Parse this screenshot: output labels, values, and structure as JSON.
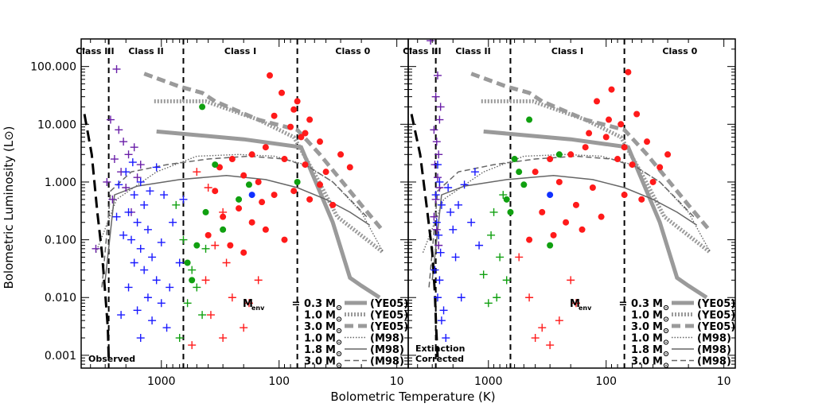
{
  "chart_data": {
    "type": "scatter",
    "xlabel": "Bolometric Temperature (K)",
    "ylabel": "Bolometric Luminosity (L⊙)",
    "x_scale": "log",
    "x_reversed": true,
    "xlim": [
      4800,
      8
    ],
    "y_scale": "log",
    "ylim": [
      0.0006,
      300
    ],
    "x_ticks": [
      1000,
      100,
      10
    ],
    "x_tick_labels": [
      "1000",
      "100",
      "10"
    ],
    "y_ticks": [
      100,
      10,
      1,
      0.1,
      0.01,
      0.001
    ],
    "y_tick_labels": [
      "100.000",
      "10.000",
      "1.000",
      "0.100",
      "0.010",
      "0.001"
    ],
    "class_boundaries_K": [
      2800,
      650,
      70
    ],
    "class_labels": [
      "Class III",
      "Class II",
      "Class I",
      "Class 0"
    ],
    "colors": {
      "class3": "#6a1fa8",
      "class2": "#1a1aff",
      "class1": "#ff1a1a",
      "class0": "#ff1a1a",
      "green": "#10a010",
      "blue_dot": "#1030ff",
      "model": "#9a9a9a",
      "model_dark": "#666666"
    },
    "legend_title": "M",
    "legend_title_sub": "env",
    "legend_entries": [
      {
        "value": "=  0.3",
        "unit": "M",
        "model": "(YE05)",
        "style": "thick-solid"
      },
      {
        "value": "1.0",
        "unit": "M",
        "model": "(YE05)",
        "style": "thick-dotted"
      },
      {
        "value": "3.0",
        "unit": "M",
        "model": "(YE05)",
        "style": "thick-dashed"
      },
      {
        "value": "1.0",
        "unit": "M",
        "model": "(M98)",
        "style": "thin-dotted"
      },
      {
        "value": "1.8",
        "unit": "M",
        "model": "(M98)",
        "style": "thin-solid"
      },
      {
        "value": "3.0",
        "unit": "M",
        "model": "(M98)",
        "style": "thin-dashed"
      }
    ],
    "panels": [
      {
        "name": "observed",
        "corner_label": [
          "Observed"
        ]
      },
      {
        "name": "extinction_corrected",
        "corner_label": [
          "Extinction",
          "Corrected"
        ]
      }
    ],
    "model_tracks": [
      {
        "name": "YE05 0.3",
        "x": [
          1100,
          200,
          65,
          35,
          25,
          20,
          14
        ],
        "y": [
          7.5,
          5.5,
          4,
          0.2,
          0.022,
          0.016,
          0.01
        ]
      },
      {
        "name": "YE05 1.0",
        "x": [
          1150,
          420,
          150,
          75,
          48,
          32,
          13
        ],
        "y": [
          25,
          25,
          12,
          6,
          1.2,
          0.25,
          0.06
        ]
      },
      {
        "name": "YE05 3.0",
        "x": [
          1400,
          700,
          450,
          350,
          150,
          70,
          45,
          20,
          13
        ],
        "y": [
          75,
          45,
          35,
          25,
          12,
          8,
          3,
          0.4,
          0.14
        ]
      },
      {
        "name": "M98 1.0",
        "x": [
          3600,
          2400,
          1100,
          500,
          220,
          110,
          60,
          35,
          20,
          13
        ],
        "y": [
          0.06,
          0.5,
          1.5,
          2.8,
          3.0,
          2.8,
          2.0,
          1.0,
          0.3,
          0.06
        ]
      },
      {
        "name": "M98 1.8",
        "x": [
          3000,
          2500,
          1600,
          700,
          280,
          130,
          70,
          40,
          25,
          17
        ],
        "y": [
          0.02,
          0.6,
          0.85,
          1.1,
          1.3,
          1.1,
          0.8,
          0.5,
          0.3,
          0.18
        ]
      },
      {
        "name": "M98 3.0",
        "x": [
          3200,
          2700,
          1800,
          900,
          400,
          180,
          90,
          55,
          35,
          25,
          18
        ],
        "y": [
          0.015,
          0.7,
          1.5,
          2.0,
          2.5,
          2.8,
          2.5,
          1.8,
          1.0,
          0.5,
          0.25
        ]
      }
    ],
    "observed_curves": {
      "observed": {
        "x": [
          4500,
          3900,
          3500,
          3200,
          3000,
          2850,
          2800
        ],
        "y": [
          15,
          3,
          0.3,
          0.06,
          0.012,
          0.003,
          0.0009
        ]
      },
      "extinction_corrected": {
        "x": [
          4500,
          3800,
          3300,
          3000,
          2850,
          2780,
          2700
        ],
        "y": [
          15,
          3,
          0.3,
          0.06,
          0.012,
          0.003,
          0.0009
        ]
      }
    },
    "left_panel_points": [
      {
        "c": "p",
        "x": 2400,
        "y": 90
      },
      {
        "c": "p",
        "x": 2700,
        "y": 12
      },
      {
        "c": "p",
        "x": 2300,
        "y": 8
      },
      {
        "c": "p",
        "x": 2100,
        "y": 5
      },
      {
        "c": "p",
        "x": 1900,
        "y": 3
      },
      {
        "c": "p",
        "x": 2500,
        "y": 2.5
      },
      {
        "c": "p",
        "x": 1700,
        "y": 4
      },
      {
        "c": "p",
        "x": 2200,
        "y": 1.5
      },
      {
        "c": "p",
        "x": 2000,
        "y": 0.8
      },
      {
        "c": "p",
        "x": 1600,
        "y": 1.2
      },
      {
        "c": "p",
        "x": 2600,
        "y": 0.5
      },
      {
        "c": "p",
        "x": 1800,
        "y": 0.3
      },
      {
        "c": "p",
        "x": 3600,
        "y": 0.07
      },
      {
        "c": "p",
        "x": 1500,
        "y": 2
      },
      {
        "c": "p",
        "x": 2900,
        "y": 1
      },
      {
        "c": "b",
        "x": 2000,
        "y": 1.5
      },
      {
        "c": "b",
        "x": 1500,
        "y": 1
      },
      {
        "c": "b",
        "x": 1700,
        "y": 0.6
      },
      {
        "c": "b",
        "x": 1400,
        "y": 0.4
      },
      {
        "c": "b",
        "x": 1900,
        "y": 0.3
      },
      {
        "c": "b",
        "x": 1600,
        "y": 0.2
      },
      {
        "c": "b",
        "x": 1300,
        "y": 0.15
      },
      {
        "c": "b",
        "x": 1800,
        "y": 0.1
      },
      {
        "c": "b",
        "x": 1500,
        "y": 0.07
      },
      {
        "c": "b",
        "x": 1200,
        "y": 0.05
      },
      {
        "c": "b",
        "x": 1700,
        "y": 0.04
      },
      {
        "c": "b",
        "x": 1400,
        "y": 0.03
      },
      {
        "c": "b",
        "x": 1100,
        "y": 0.02
      },
      {
        "c": "b",
        "x": 1900,
        "y": 0.015
      },
      {
        "c": "b",
        "x": 1300,
        "y": 0.01
      },
      {
        "c": "b",
        "x": 1000,
        "y": 0.008
      },
      {
        "c": "b",
        "x": 1600,
        "y": 0.006
      },
      {
        "c": "b",
        "x": 1200,
        "y": 0.004
      },
      {
        "c": "b",
        "x": 900,
        "y": 0.003
      },
      {
        "c": "b",
        "x": 1500,
        "y": 0.002
      },
      {
        "c": "b",
        "x": 2200,
        "y": 0.005
      },
      {
        "c": "b",
        "x": 800,
        "y": 0.2
      },
      {
        "c": "b",
        "x": 950,
        "y": 0.6
      },
      {
        "c": "b",
        "x": 1100,
        "y": 1.8
      },
      {
        "c": "b",
        "x": 700,
        "y": 0.04
      },
      {
        "c": "b",
        "x": 2400,
        "y": 0.25
      },
      {
        "c": "b",
        "x": 2100,
        "y": 0.12
      },
      {
        "c": "b",
        "x": 1000,
        "y": 0.09
      },
      {
        "c": "b",
        "x": 850,
        "y": 0.015
      },
      {
        "c": "b",
        "x": 1250,
        "y": 0.7
      },
      {
        "c": "b",
        "x": 1750,
        "y": 2.2
      },
      {
        "c": "b",
        "x": 2300,
        "y": 0.9
      },
      {
        "c": "b",
        "x": 650,
        "y": 0.5
      },
      {
        "c": "g",
        "x": 750,
        "y": 0.4
      },
      {
        "c": "g",
        "x": 650,
        "y": 0.1
      },
      {
        "c": "g",
        "x": 550,
        "y": 0.03
      },
      {
        "c": "g",
        "x": 600,
        "y": 0.008
      },
      {
        "c": "g",
        "x": 450,
        "y": 0.005
      },
      {
        "c": "g",
        "x": 700,
        "y": 0.002
      },
      {
        "c": "g",
        "x": 500,
        "y": 0.015
      },
      {
        "c": "g",
        "x": 420,
        "y": 0.07
      },
      {
        "c": "r",
        "x": 500,
        "y": 1.5
      },
      {
        "c": "r",
        "x": 400,
        "y": 0.8
      },
      {
        "c": "r",
        "x": 300,
        "y": 0.3
      },
      {
        "c": "r",
        "x": 350,
        "y": 0.08
      },
      {
        "c": "r",
        "x": 280,
        "y": 0.04
      },
      {
        "c": "r",
        "x": 420,
        "y": 0.02
      },
      {
        "c": "r",
        "x": 250,
        "y": 0.01
      },
      {
        "c": "r",
        "x": 380,
        "y": 0.005
      },
      {
        "c": "r",
        "x": 300,
        "y": 0.002
      },
      {
        "c": "r",
        "x": 200,
        "y": 0.003
      },
      {
        "c": "r",
        "x": 180,
        "y": 0.008
      },
      {
        "c": "r",
        "x": 150,
        "y": 0.02
      },
      {
        "c": "r",
        "x": 550,
        "y": 0.0015
      }
    ],
    "left_panel_circles": [
      {
        "c": "r",
        "x": 120,
        "y": 70
      },
      {
        "c": "r",
        "x": 95,
        "y": 35
      },
      {
        "c": "r",
        "x": 70,
        "y": 25
      },
      {
        "c": "r",
        "x": 55,
        "y": 12
      },
      {
        "c": "r",
        "x": 110,
        "y": 14
      },
      {
        "c": "r",
        "x": 80,
        "y": 9
      },
      {
        "c": "r",
        "x": 65,
        "y": 6
      },
      {
        "c": "r",
        "x": 45,
        "y": 5
      },
      {
        "c": "r",
        "x": 130,
        "y": 4
      },
      {
        "c": "r",
        "x": 170,
        "y": 3
      },
      {
        "c": "r",
        "x": 90,
        "y": 2.5
      },
      {
        "c": "r",
        "x": 60,
        "y": 2
      },
      {
        "c": "r",
        "x": 40,
        "y": 1.5
      },
      {
        "c": "r",
        "x": 30,
        "y": 3
      },
      {
        "c": "r",
        "x": 250,
        "y": 2.5
      },
      {
        "c": "r",
        "x": 320,
        "y": 1.8
      },
      {
        "c": "r",
        "x": 200,
        "y": 1.3
      },
      {
        "c": "r",
        "x": 150,
        "y": 1
      },
      {
        "c": "r",
        "x": 75,
        "y": 0.7
      },
      {
        "c": "r",
        "x": 55,
        "y": 0.5
      },
      {
        "c": "r",
        "x": 35,
        "y": 0.4
      },
      {
        "c": "r",
        "x": 110,
        "y": 0.6
      },
      {
        "c": "r",
        "x": 220,
        "y": 0.35
      },
      {
        "c": "r",
        "x": 300,
        "y": 0.25
      },
      {
        "c": "r",
        "x": 170,
        "y": 0.2
      },
      {
        "c": "r",
        "x": 130,
        "y": 0.15
      },
      {
        "c": "r",
        "x": 400,
        "y": 0.12
      },
      {
        "c": "r",
        "x": 260,
        "y": 0.08
      },
      {
        "c": "r",
        "x": 90,
        "y": 0.1
      },
      {
        "c": "r",
        "x": 200,
        "y": 0.06
      },
      {
        "c": "r",
        "x": 140,
        "y": 0.45
      },
      {
        "c": "r",
        "x": 350,
        "y": 0.7
      },
      {
        "c": "r",
        "x": 45,
        "y": 0.9
      },
      {
        "c": "r",
        "x": 60,
        "y": 7
      },
      {
        "c": "r",
        "x": 75,
        "y": 18
      },
      {
        "c": "r",
        "x": 25,
        "y": 1.8
      },
      {
        "c": "g",
        "x": 220,
        "y": 0.5
      },
      {
        "c": "g",
        "x": 420,
        "y": 0.3
      },
      {
        "c": "g",
        "x": 300,
        "y": 0.15
      },
      {
        "c": "g",
        "x": 500,
        "y": 0.08
      },
      {
        "c": "g",
        "x": 600,
        "y": 0.04
      },
      {
        "c": "g",
        "x": 550,
        "y": 0.02
      },
      {
        "c": "g",
        "x": 350,
        "y": 2
      },
      {
        "c": "g",
        "x": 70,
        "y": 1
      },
      {
        "c": "g",
        "x": 450,
        "y": 20
      },
      {
        "c": "g",
        "x": 180,
        "y": 0.9
      },
      {
        "c": "k",
        "x": 170,
        "y": 0.6
      }
    ],
    "right_panel_points": [
      {
        "c": "p",
        "x": 3100,
        "y": 280
      },
      {
        "c": "p",
        "x": 2700,
        "y": 70
      },
      {
        "c": "p",
        "x": 2800,
        "y": 30
      },
      {
        "c": "p",
        "x": 2600,
        "y": 12
      },
      {
        "c": "p",
        "x": 2900,
        "y": 8
      },
      {
        "c": "p",
        "x": 2750,
        "y": 5
      },
      {
        "c": "p",
        "x": 2650,
        "y": 3
      },
      {
        "c": "p",
        "x": 2850,
        "y": 2
      },
      {
        "c": "p",
        "x": 2700,
        "y": 1.2
      },
      {
        "c": "p",
        "x": 2600,
        "y": 0.8
      },
      {
        "c": "p",
        "x": 2800,
        "y": 0.5
      },
      {
        "c": "p",
        "x": 2900,
        "y": 0.25
      },
      {
        "c": "p",
        "x": 2750,
        "y": 0.15
      },
      {
        "c": "p",
        "x": 2650,
        "y": 0.08
      },
      {
        "c": "p",
        "x": 2550,
        "y": 20
      },
      {
        "c": "b",
        "x": 2700,
        "y": 2
      },
      {
        "c": "b",
        "x": 2600,
        "y": 1
      },
      {
        "c": "b",
        "x": 2800,
        "y": 0.6
      },
      {
        "c": "b",
        "x": 2500,
        "y": 0.4
      },
      {
        "c": "b",
        "x": 2750,
        "y": 0.2
      },
      {
        "c": "b",
        "x": 2650,
        "y": 0.12
      },
      {
        "c": "b",
        "x": 2550,
        "y": 0.06
      },
      {
        "c": "b",
        "x": 2850,
        "y": 0.03
      },
      {
        "c": "b",
        "x": 2600,
        "y": 0.02
      },
      {
        "c": "b",
        "x": 2700,
        "y": 0.01
      },
      {
        "c": "b",
        "x": 2400,
        "y": 0.006
      },
      {
        "c": "b",
        "x": 2500,
        "y": 0.004
      },
      {
        "c": "b",
        "x": 2300,
        "y": 0.002
      },
      {
        "c": "b",
        "x": 2000,
        "y": 0.15
      },
      {
        "c": "b",
        "x": 1800,
        "y": 0.4
      },
      {
        "c": "b",
        "x": 1600,
        "y": 0.9
      },
      {
        "c": "b",
        "x": 1400,
        "y": 0.2
      },
      {
        "c": "b",
        "x": 1900,
        "y": 0.05
      },
      {
        "c": "b",
        "x": 2200,
        "y": 0.8
      },
      {
        "c": "b",
        "x": 2100,
        "y": 0.3
      },
      {
        "c": "b",
        "x": 1300,
        "y": 1.5
      },
      {
        "c": "b",
        "x": 1700,
        "y": 0.01
      },
      {
        "c": "b",
        "x": 1200,
        "y": 0.08
      },
      {
        "c": "g",
        "x": 900,
        "y": 0.3
      },
      {
        "c": "g",
        "x": 800,
        "y": 0.05
      },
      {
        "c": "g",
        "x": 700,
        "y": 0.02
      },
      {
        "c": "g",
        "x": 1000,
        "y": 0.008
      },
      {
        "c": "g",
        "x": 750,
        "y": 0.6
      },
      {
        "c": "g",
        "x": 950,
        "y": 0.12
      },
      {
        "c": "g",
        "x": 850,
        "y": 0.01
      },
      {
        "c": "g",
        "x": 1100,
        "y": 0.025
      },
      {
        "c": "r",
        "x": 450,
        "y": 0.01
      },
      {
        "c": "r",
        "x": 350,
        "y": 0.003
      },
      {
        "c": "r",
        "x": 300,
        "y": 0.0015
      },
      {
        "c": "r",
        "x": 250,
        "y": 0.004
      },
      {
        "c": "r",
        "x": 200,
        "y": 0.02
      },
      {
        "c": "r",
        "x": 550,
        "y": 0.05
      },
      {
        "c": "r",
        "x": 400,
        "y": 0.002
      },
      {
        "c": "r",
        "x": 180,
        "y": 0.008
      }
    ],
    "right_panel_circles": [
      {
        "c": "r",
        "x": 65,
        "y": 80
      },
      {
        "c": "r",
        "x": 90,
        "y": 40
      },
      {
        "c": "r",
        "x": 120,
        "y": 25
      },
      {
        "c": "r",
        "x": 55,
        "y": 15
      },
      {
        "c": "r",
        "x": 75,
        "y": 10
      },
      {
        "c": "r",
        "x": 100,
        "y": 6
      },
      {
        "c": "r",
        "x": 45,
        "y": 5
      },
      {
        "c": "r",
        "x": 150,
        "y": 4
      },
      {
        "c": "r",
        "x": 200,
        "y": 3
      },
      {
        "c": "r",
        "x": 80,
        "y": 2.5
      },
      {
        "c": "r",
        "x": 60,
        "y": 2
      },
      {
        "c": "r",
        "x": 35,
        "y": 1.8
      },
      {
        "c": "r",
        "x": 300,
        "y": 2.5
      },
      {
        "c": "r",
        "x": 400,
        "y": 1.5
      },
      {
        "c": "r",
        "x": 250,
        "y": 1
      },
      {
        "c": "r",
        "x": 130,
        "y": 0.8
      },
      {
        "c": "r",
        "x": 70,
        "y": 0.6
      },
      {
        "c": "r",
        "x": 50,
        "y": 0.5
      },
      {
        "c": "r",
        "x": 180,
        "y": 0.4
      },
      {
        "c": "r",
        "x": 350,
        "y": 0.3
      },
      {
        "c": "r",
        "x": 220,
        "y": 0.2
      },
      {
        "c": "r",
        "x": 280,
        "y": 0.12
      },
      {
        "c": "r",
        "x": 160,
        "y": 0.15
      },
      {
        "c": "r",
        "x": 450,
        "y": 0.1
      },
      {
        "c": "r",
        "x": 110,
        "y": 0.25
      },
      {
        "c": "r",
        "x": 40,
        "y": 1
      },
      {
        "c": "r",
        "x": 30,
        "y": 3
      },
      {
        "c": "r",
        "x": 95,
        "y": 12
      },
      {
        "c": "r",
        "x": 140,
        "y": 7
      },
      {
        "c": "r",
        "x": 70,
        "y": 4
      },
      {
        "c": "g",
        "x": 600,
        "y": 2.5
      },
      {
        "c": "g",
        "x": 550,
        "y": 1.5
      },
      {
        "c": "g",
        "x": 500,
        "y": 0.9
      },
      {
        "c": "g",
        "x": 700,
        "y": 0.5
      },
      {
        "c": "g",
        "x": 650,
        "y": 0.3
      },
      {
        "c": "g",
        "x": 300,
        "y": 0.08
      },
      {
        "c": "g",
        "x": 450,
        "y": 12
      },
      {
        "c": "g",
        "x": 250,
        "y": 3
      },
      {
        "c": "k",
        "x": 300,
        "y": 0.6
      }
    ]
  }
}
